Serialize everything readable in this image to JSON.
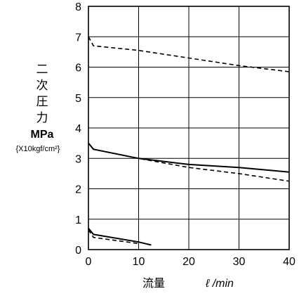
{
  "chart_data": {
    "type": "line",
    "title": "",
    "ylabel": {
      "chars": [
        "二",
        "次",
        "圧",
        "力"
      ],
      "unit": "MPa",
      "sub": "{X10kgf/cm²}"
    },
    "xlabel": {
      "text": "流量",
      "unit": "ℓ /min"
    },
    "xlim": [
      0,
      40
    ],
    "ylim": [
      0,
      8
    ],
    "xticks": [
      "0",
      "10",
      "20",
      "30",
      "40"
    ],
    "yticks": [
      "0",
      "1",
      "2",
      "3",
      "4",
      "5",
      "6",
      "7",
      "8"
    ],
    "grid": true,
    "series": [
      {
        "style": "dashed",
        "points": [
          [
            0,
            7.0
          ],
          [
            1,
            6.7
          ],
          [
            10,
            6.55
          ],
          [
            20,
            6.3
          ],
          [
            30,
            6.05
          ],
          [
            40,
            5.85
          ]
        ]
      },
      {
        "style": "solid",
        "points": [
          [
            0,
            3.5
          ],
          [
            1,
            3.3
          ],
          [
            10,
            3.0
          ],
          [
            20,
            2.8
          ],
          [
            30,
            2.7
          ],
          [
            40,
            2.55
          ]
        ]
      },
      {
        "style": "dashed",
        "points": [
          [
            0,
            3.5
          ],
          [
            1,
            3.3
          ],
          [
            10,
            3.0
          ],
          [
            20,
            2.7
          ],
          [
            30,
            2.5
          ],
          [
            40,
            2.25
          ]
        ]
      },
      {
        "style": "solid",
        "points": [
          [
            0,
            0.7
          ],
          [
            1,
            0.5
          ],
          [
            10,
            0.25
          ],
          [
            12.5,
            0.15
          ]
        ]
      },
      {
        "style": "dashed",
        "points": [
          [
            0,
            0.65
          ],
          [
            1,
            0.4
          ],
          [
            10,
            0.2
          ]
        ]
      }
    ]
  }
}
